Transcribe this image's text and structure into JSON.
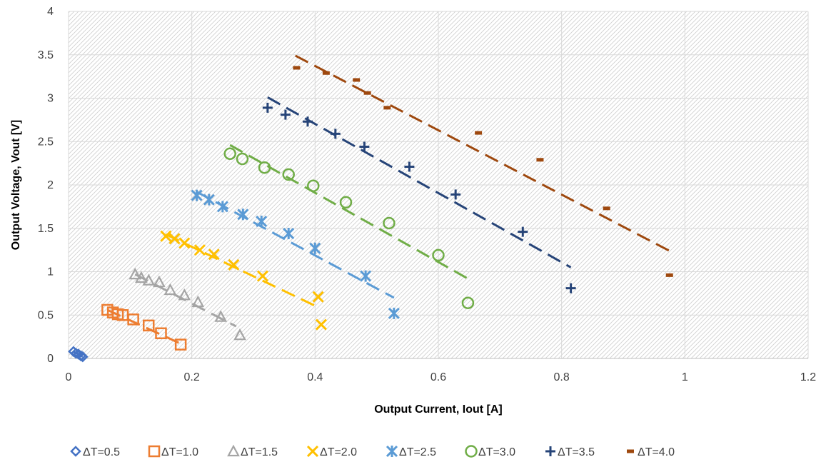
{
  "chart_data": {
    "type": "scatter",
    "xlabel": "Output Current, Iout [A]",
    "ylabel": "Output Voltage, Vout [V]",
    "xlim": [
      0,
      1.2
    ],
    "ylim": [
      0,
      4
    ],
    "x_ticks": [
      "0",
      "0.2",
      "0.4",
      "0.6",
      "0.8",
      "1",
      "1.2"
    ],
    "y_ticks": [
      "0",
      "0.5",
      "1",
      "1.5",
      "2",
      "2.5",
      "3",
      "3.5",
      "4"
    ],
    "grid": true,
    "plot_area_pattern": "diagonal hatch",
    "legend_position": "bottom",
    "series": [
      {
        "name": "ΔT=0.5",
        "color": "#4472C4",
        "marker": "diamond",
        "points": [
          [
            0.008,
            0.08
          ],
          [
            0.012,
            0.06
          ],
          [
            0.016,
            0.05
          ],
          [
            0.02,
            0.03
          ],
          [
            0.023,
            0.02
          ]
        ],
        "trend": [
          [
            0.008,
            0.08
          ],
          [
            0.023,
            0.02
          ]
        ]
      },
      {
        "name": "ΔT=1.0",
        "color": "#ED7D31",
        "marker": "square",
        "points": [
          [
            0.063,
            0.56
          ],
          [
            0.072,
            0.53
          ],
          [
            0.08,
            0.51
          ],
          [
            0.088,
            0.5
          ],
          [
            0.105,
            0.45
          ],
          [
            0.13,
            0.38
          ],
          [
            0.15,
            0.29
          ],
          [
            0.182,
            0.16
          ]
        ],
        "trend": [
          [
            0.063,
            0.56
          ],
          [
            0.182,
            0.17
          ]
        ]
      },
      {
        "name": "ΔT=1.5",
        "color": "#A5A5A5",
        "marker": "triangle",
        "points": [
          [
            0.108,
            0.97
          ],
          [
            0.118,
            0.93
          ],
          [
            0.13,
            0.9
          ],
          [
            0.147,
            0.88
          ],
          [
            0.165,
            0.79
          ],
          [
            0.188,
            0.73
          ],
          [
            0.21,
            0.65
          ],
          [
            0.247,
            0.48
          ],
          [
            0.278,
            0.27
          ]
        ],
        "trend": [
          [
            0.108,
            0.97
          ],
          [
            0.272,
            0.37
          ]
        ]
      },
      {
        "name": "ΔT=2.0",
        "color": "#FFC000",
        "marker": "x",
        "points": [
          [
            0.158,
            1.41
          ],
          [
            0.172,
            1.38
          ],
          [
            0.188,
            1.33
          ],
          [
            0.213,
            1.25
          ],
          [
            0.236,
            1.2
          ],
          [
            0.268,
            1.08
          ],
          [
            0.315,
            0.95
          ],
          [
            0.405,
            0.71
          ],
          [
            0.41,
            0.39
          ]
        ],
        "trend": [
          [
            0.158,
            1.43
          ],
          [
            0.408,
            0.58
          ]
        ]
      },
      {
        "name": "ΔT=2.5",
        "color": "#5B9BD5",
        "marker": "asterisk",
        "points": [
          [
            0.208,
            1.88
          ],
          [
            0.228,
            1.83
          ],
          [
            0.25,
            1.75
          ],
          [
            0.283,
            1.66
          ],
          [
            0.313,
            1.58
          ],
          [
            0.357,
            1.44
          ],
          [
            0.4,
            1.27
          ],
          [
            0.482,
            0.95
          ],
          [
            0.528,
            0.52
          ]
        ],
        "trend": [
          [
            0.208,
            1.92
          ],
          [
            0.528,
            0.7
          ]
        ]
      },
      {
        "name": "ΔT=3.0",
        "color": "#70AD47",
        "marker": "circle",
        "points": [
          [
            0.262,
            2.36
          ],
          [
            0.282,
            2.3
          ],
          [
            0.318,
            2.2
          ],
          [
            0.357,
            2.12
          ],
          [
            0.397,
            1.99
          ],
          [
            0.45,
            1.8
          ],
          [
            0.52,
            1.56
          ],
          [
            0.6,
            1.19
          ],
          [
            0.648,
            0.64
          ]
        ],
        "trend": [
          [
            0.262,
            2.46
          ],
          [
            0.648,
            0.92
          ]
        ]
      },
      {
        "name": "ΔT=3.5",
        "color": "#264478",
        "marker": "plus",
        "points": [
          [
            0.323,
            2.89
          ],
          [
            0.352,
            2.81
          ],
          [
            0.388,
            2.73
          ],
          [
            0.433,
            2.59
          ],
          [
            0.48,
            2.44
          ],
          [
            0.553,
            2.21
          ],
          [
            0.628,
            1.89
          ],
          [
            0.737,
            1.46
          ],
          [
            0.815,
            0.81
          ]
        ],
        "trend": [
          [
            0.323,
            3.01
          ],
          [
            0.815,
            1.05
          ]
        ]
      },
      {
        "name": "ΔT=4.0",
        "color": "#9E480E",
        "marker": "dash",
        "points": [
          [
            0.37,
            3.35
          ],
          [
            0.418,
            3.29
          ],
          [
            0.467,
            3.21
          ],
          [
            0.485,
            3.06
          ],
          [
            0.517,
            2.89
          ],
          [
            0.665,
            2.6
          ],
          [
            0.765,
            2.29
          ],
          [
            0.873,
            1.73
          ],
          [
            0.975,
            0.96
          ]
        ],
        "trend": [
          [
            0.368,
            3.49
          ],
          [
            0.975,
            1.24
          ]
        ]
      }
    ]
  }
}
